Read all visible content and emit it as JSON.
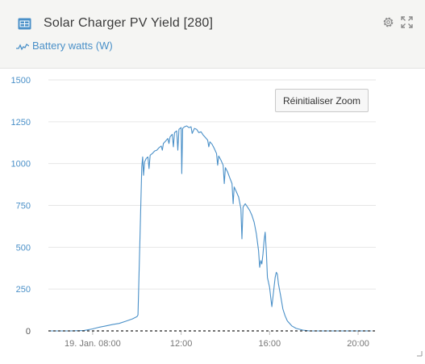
{
  "header": {
    "title": "Solar Charger PV Yield [280]",
    "device_icon": "solar-charger-icon",
    "settings_icon": "gear-icon",
    "expand_icon": "expand-icon"
  },
  "legend": {
    "label": "Battery watts (W)",
    "icon": "line-series-icon",
    "color": "#4a90c8"
  },
  "reset_zoom_label": "Réinitialiser Zoom",
  "chart_data": {
    "type": "line",
    "title": "",
    "xlabel": "",
    "ylabel": "",
    "x_ticks": [
      {
        "label": "19. Jan. 08:00",
        "hour": 8
      },
      {
        "label": "12:00",
        "hour": 12
      },
      {
        "label": "16:00",
        "hour": 16
      },
      {
        "label": "20:00",
        "hour": 20
      }
    ],
    "xlim": [
      6.0,
      20.8
    ],
    "ylim": [
      0,
      1500
    ],
    "y_ticks": [
      0,
      250,
      500,
      750,
      1000,
      1250,
      1500
    ],
    "grid": "horizontal",
    "baseline": "dashed zero line",
    "line_color": "#4a90c8",
    "series": [
      {
        "name": "Battery watts (W)",
        "points": [
          [
            6.0,
            0
          ],
          [
            7.0,
            0
          ],
          [
            7.6,
            2
          ],
          [
            8.0,
            12
          ],
          [
            8.3,
            22
          ],
          [
            8.6,
            30
          ],
          [
            8.9,
            38
          ],
          [
            9.2,
            45
          ],
          [
            9.5,
            58
          ],
          [
            9.8,
            72
          ],
          [
            10.0,
            85
          ],
          [
            10.05,
            95
          ],
          [
            10.15,
            600
          ],
          [
            10.22,
            980
          ],
          [
            10.26,
            1040
          ],
          [
            10.3,
            930
          ],
          [
            10.35,
            1010
          ],
          [
            10.42,
            1030
          ],
          [
            10.5,
            1040
          ],
          [
            10.55,
            970
          ],
          [
            10.6,
            1050
          ],
          [
            10.7,
            1060
          ],
          [
            10.8,
            1075
          ],
          [
            10.9,
            1080
          ],
          [
            11.0,
            1095
          ],
          [
            11.1,
            1105
          ],
          [
            11.15,
            1080
          ],
          [
            11.2,
            1120
          ],
          [
            11.3,
            1135
          ],
          [
            11.4,
            1150
          ],
          [
            11.45,
            1120
          ],
          [
            11.5,
            1160
          ],
          [
            11.6,
            1175
          ],
          [
            11.65,
            1100
          ],
          [
            11.7,
            1185
          ],
          [
            11.8,
            1195
          ],
          [
            11.85,
            1080
          ],
          [
            11.9,
            1205
          ],
          [
            12.0,
            1215
          ],
          [
            12.03,
            940
          ],
          [
            12.07,
            1210
          ],
          [
            12.15,
            1220
          ],
          [
            12.25,
            1225
          ],
          [
            12.35,
            1215
          ],
          [
            12.45,
            1220
          ],
          [
            12.5,
            1180
          ],
          [
            12.6,
            1210
          ],
          [
            12.7,
            1205
          ],
          [
            12.8,
            1185
          ],
          [
            12.9,
            1190
          ],
          [
            13.0,
            1170
          ],
          [
            13.1,
            1155
          ],
          [
            13.2,
            1140
          ],
          [
            13.25,
            1100
          ],
          [
            13.3,
            1130
          ],
          [
            13.4,
            1115
          ],
          [
            13.5,
            1090
          ],
          [
            13.6,
            1060
          ],
          [
            13.65,
            990
          ],
          [
            13.7,
            1045
          ],
          [
            13.8,
            1020
          ],
          [
            13.9,
            990
          ],
          [
            13.95,
            880
          ],
          [
            14.0,
            975
          ],
          [
            14.1,
            950
          ],
          [
            14.2,
            915
          ],
          [
            14.3,
            880
          ],
          [
            14.35,
            760
          ],
          [
            14.4,
            860
          ],
          [
            14.5,
            830
          ],
          [
            14.6,
            800
          ],
          [
            14.7,
            730
          ],
          [
            14.75,
            550
          ],
          [
            14.8,
            740
          ],
          [
            14.9,
            760
          ],
          [
            15.0,
            740
          ],
          [
            15.1,
            720
          ],
          [
            15.2,
            690
          ],
          [
            15.3,
            650
          ],
          [
            15.4,
            580
          ],
          [
            15.5,
            480
          ],
          [
            15.55,
            380
          ],
          [
            15.6,
            420
          ],
          [
            15.65,
            400
          ],
          [
            15.7,
            460
          ],
          [
            15.75,
            540
          ],
          [
            15.8,
            590
          ],
          [
            15.85,
            480
          ],
          [
            15.9,
            320
          ],
          [
            16.0,
            260
          ],
          [
            16.05,
            200
          ],
          [
            16.1,
            145
          ],
          [
            16.15,
            200
          ],
          [
            16.2,
            260
          ],
          [
            16.25,
            320
          ],
          [
            16.3,
            350
          ],
          [
            16.35,
            340
          ],
          [
            16.4,
            280
          ],
          [
            16.5,
            210
          ],
          [
            16.6,
            130
          ],
          [
            16.7,
            90
          ],
          [
            16.8,
            60
          ],
          [
            17.0,
            30
          ],
          [
            17.2,
            15
          ],
          [
            17.5,
            5
          ],
          [
            17.8,
            0
          ],
          [
            20.6,
            0
          ]
        ]
      }
    ]
  }
}
